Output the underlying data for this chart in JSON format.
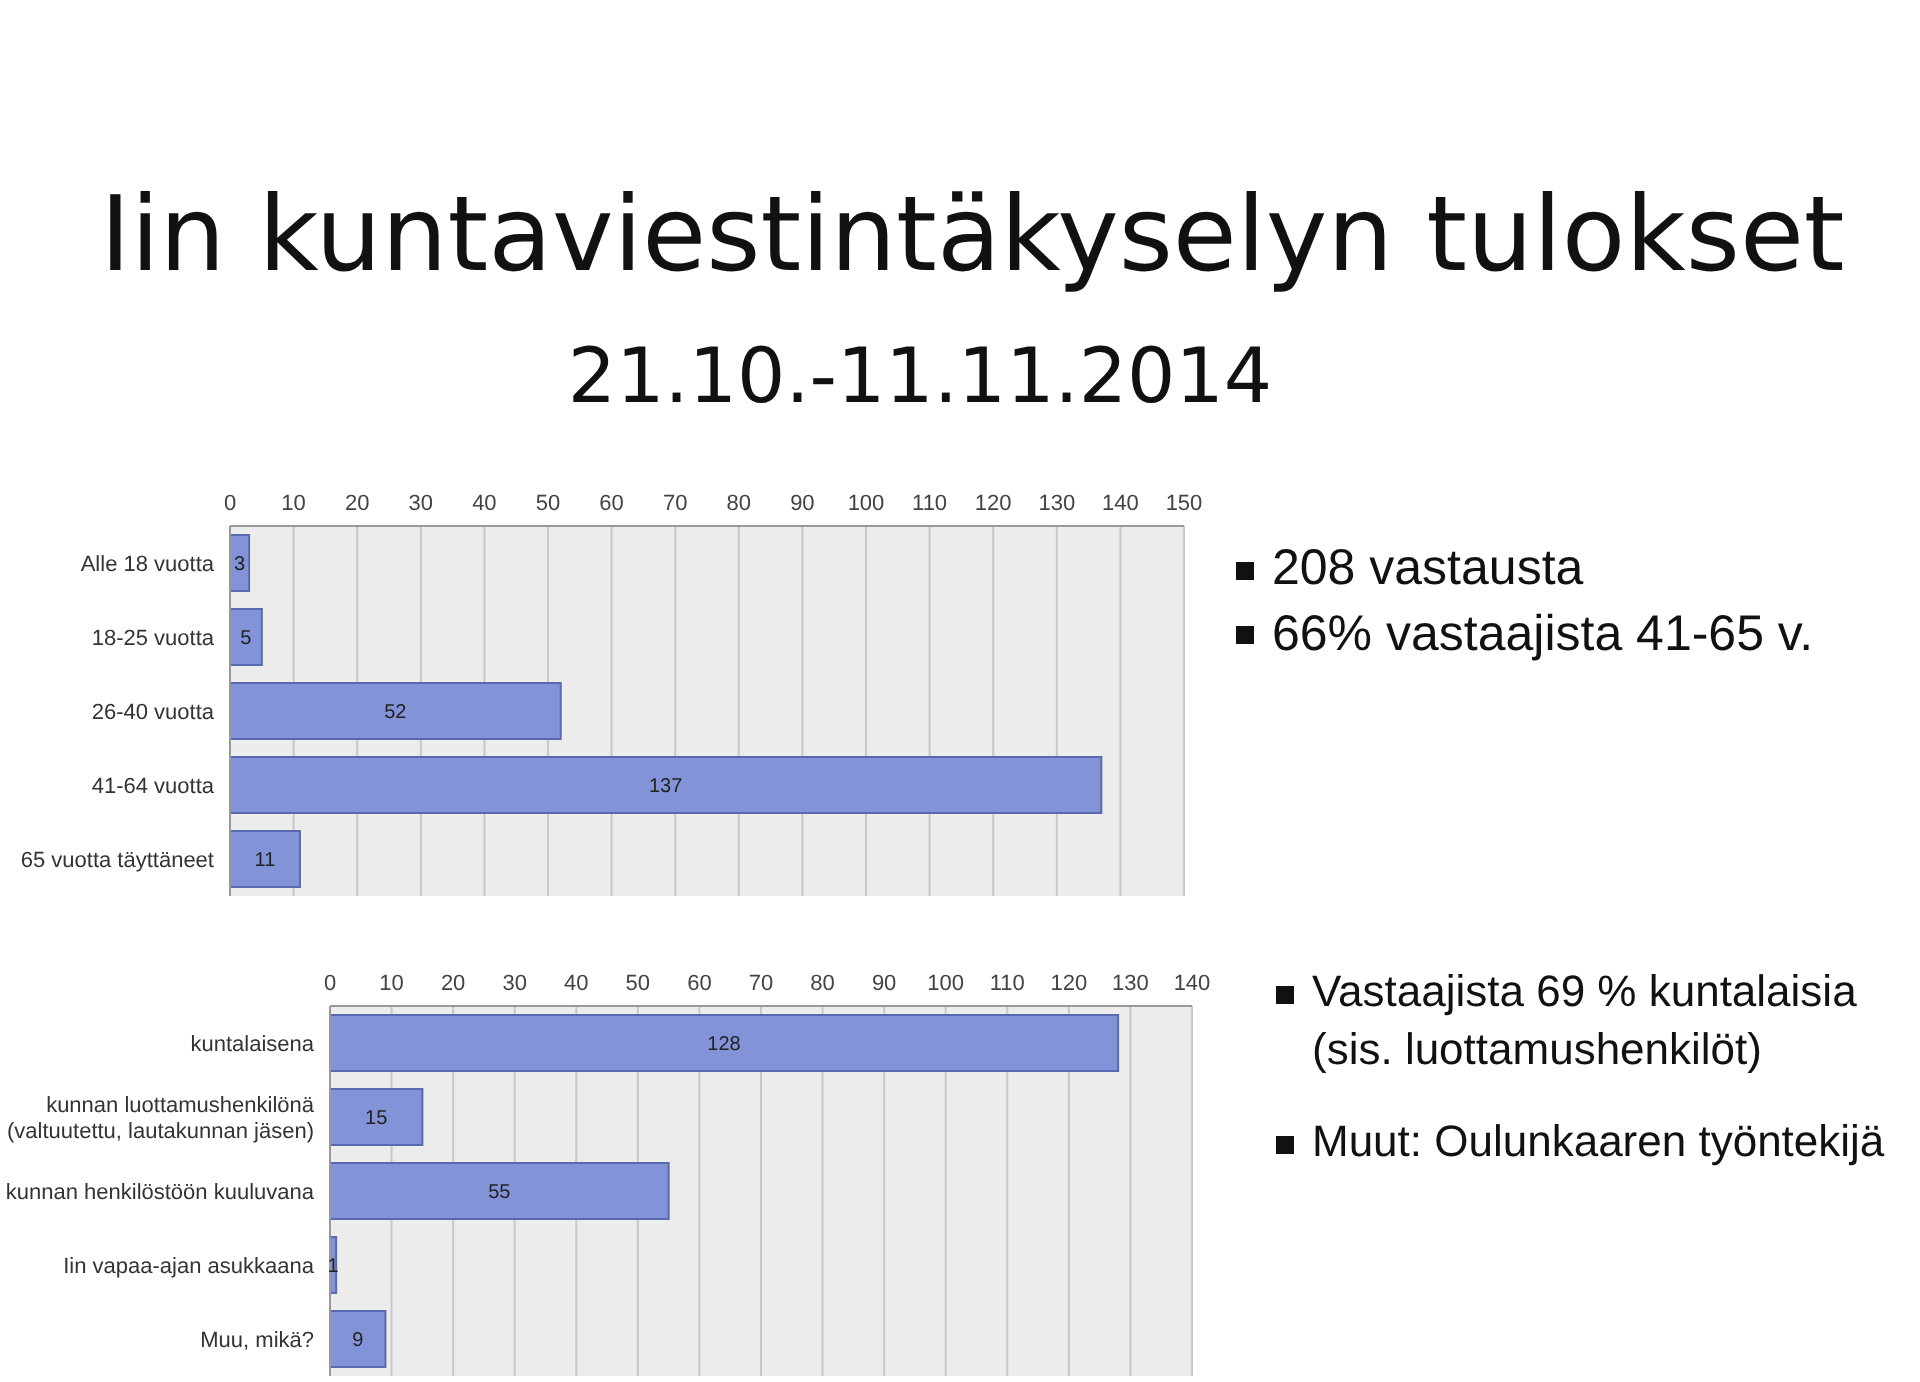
{
  "chart_data": [
    {
      "type": "bar",
      "orientation": "horizontal",
      "title": "Iin kuntaviestintäkyselyn tulokset",
      "subtitle": "21.10.-11.11.2014",
      "categories": [
        "Alle 18 vuotta",
        "18-25 vuotta",
        "26-40 vuotta",
        "41-64 vuotta",
        "65 vuotta täyttäneet"
      ],
      "values": [
        3,
        5,
        52,
        137,
        11
      ],
      "color": "#8393d8",
      "xlim": [
        0,
        150
      ],
      "xticks": [
        0,
        10,
        20,
        30,
        40,
        50,
        60,
        70,
        80,
        90,
        100,
        110,
        120,
        130,
        140,
        150
      ],
      "grid": "x",
      "data_labels": true,
      "annotations": [
        "208 vastausta",
        "66% vastaajista 41-65 v."
      ]
    },
    {
      "type": "bar",
      "orientation": "horizontal",
      "categories": [
        "kuntalaisena",
        "kunnan luottamushenkilönä\n(valtuutettu, lautakunnan jäsen)",
        "kunnan henkilöstöön kuuluvana",
        "Iin vapaa-ajan asukkaana",
        "Muu, mikä?"
      ],
      "values": [
        128,
        15,
        55,
        1,
        9
      ],
      "color": "#8393d8",
      "xlim": [
        0,
        140
      ],
      "xticks": [
        0,
        10,
        20,
        30,
        40,
        50,
        60,
        70,
        80,
        90,
        100,
        110,
        120,
        130,
        140
      ],
      "grid": "x",
      "data_labels": true,
      "annotations": [
        "Vastaajista 69 % kuntalaisia (sis. luottamushenkilöt)",
        "Muut: Oulunkaaren työntekijä"
      ]
    }
  ]
}
